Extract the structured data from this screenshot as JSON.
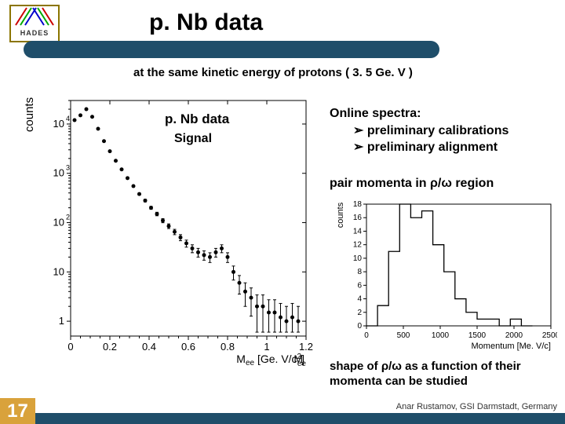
{
  "logo": {
    "text": "HADES"
  },
  "title": "p. Nb data",
  "subtitle": "at the same kinetic energy of protons ( 3. 5 Ge. V )",
  "left_plot": {
    "label1": "p. Nb data",
    "label2": "Signal",
    "ylabel": "counts",
    "xlabel": "M_{ee} [Ge. V/c²]",
    "xlim": [
      0,
      1.2
    ],
    "xticks": [
      0,
      0.2,
      0.4,
      0.6,
      0.8,
      1,
      1.2
    ],
    "ylim": [
      0.5,
      30000
    ],
    "yticks_log": [
      1,
      10,
      100,
      1000,
      10000
    ],
    "ytick_labels": [
      "1",
      "10",
      "10^{2}",
      "10^{3}",
      "10^{4}"
    ],
    "data": [
      {
        "x": 0.02,
        "y": 12000
      },
      {
        "x": 0.05,
        "y": 15000
      },
      {
        "x": 0.08,
        "y": 20000
      },
      {
        "x": 0.11,
        "y": 14000
      },
      {
        "x": 0.14,
        "y": 8000
      },
      {
        "x": 0.17,
        "y": 4500
      },
      {
        "x": 0.2,
        "y": 2800
      },
      {
        "x": 0.23,
        "y": 1800
      },
      {
        "x": 0.26,
        "y": 1200
      },
      {
        "x": 0.29,
        "y": 800
      },
      {
        "x": 0.32,
        "y": 550
      },
      {
        "x": 0.35,
        "y": 380
      },
      {
        "x": 0.38,
        "y": 280
      },
      {
        "x": 0.41,
        "y": 200
      },
      {
        "x": 0.44,
        "y": 150
      },
      {
        "x": 0.47,
        "y": 110
      },
      {
        "x": 0.5,
        "y": 85
      },
      {
        "x": 0.53,
        "y": 65
      },
      {
        "x": 0.56,
        "y": 50
      },
      {
        "x": 0.59,
        "y": 38
      },
      {
        "x": 0.62,
        "y": 30
      },
      {
        "x": 0.65,
        "y": 25
      },
      {
        "x": 0.68,
        "y": 22
      },
      {
        "x": 0.71,
        "y": 20
      },
      {
        "x": 0.74,
        "y": 25
      },
      {
        "x": 0.77,
        "y": 30
      },
      {
        "x": 0.8,
        "y": 20
      },
      {
        "x": 0.83,
        "y": 10
      },
      {
        "x": 0.86,
        "y": 6
      },
      {
        "x": 0.89,
        "y": 4
      },
      {
        "x": 0.92,
        "y": 3
      },
      {
        "x": 0.95,
        "y": 2
      },
      {
        "x": 0.98,
        "y": 2
      },
      {
        "x": 1.01,
        "y": 1.5
      },
      {
        "x": 1.04,
        "y": 1.5
      },
      {
        "x": 1.07,
        "y": 1.2
      },
      {
        "x": 1.1,
        "y": 1
      },
      {
        "x": 1.13,
        "y": 1.2
      },
      {
        "x": 1.16,
        "y": 1
      }
    ],
    "marker_color": "#000000",
    "frame_color": "#000000"
  },
  "right_text": {
    "heading": "Online spectra:",
    "bullets": [
      "preliminary calibrations",
      "preliminary alignment"
    ],
    "sub1": "pair momenta in ρ/ω region",
    "sub2": "shape of ρ/ω as a function of their momenta can be studied"
  },
  "right_plot": {
    "ylabel": "counts",
    "xlabel": "Momentum [Me. V/c]",
    "xlim": [
      0,
      2500
    ],
    "xticks": [
      0,
      500,
      1000,
      1500,
      2000,
      2500
    ],
    "ylim": [
      0,
      18
    ],
    "yticks": [
      0,
      2,
      4,
      6,
      8,
      10,
      12,
      14,
      16,
      18
    ],
    "hist_bins": [
      {
        "lo": 0,
        "hi": 150,
        "n": 0
      },
      {
        "lo": 150,
        "hi": 300,
        "n": 3
      },
      {
        "lo": 300,
        "hi": 450,
        "n": 11
      },
      {
        "lo": 450,
        "hi": 600,
        "n": 18
      },
      {
        "lo": 600,
        "hi": 750,
        "n": 16
      },
      {
        "lo": 750,
        "hi": 900,
        "n": 17
      },
      {
        "lo": 900,
        "hi": 1050,
        "n": 12
      },
      {
        "lo": 1050,
        "hi": 1200,
        "n": 8
      },
      {
        "lo": 1200,
        "hi": 1350,
        "n": 4
      },
      {
        "lo": 1350,
        "hi": 1500,
        "n": 2
      },
      {
        "lo": 1500,
        "hi": 1650,
        "n": 1
      },
      {
        "lo": 1650,
        "hi": 1800,
        "n": 1
      },
      {
        "lo": 1800,
        "hi": 1950,
        "n": 0
      },
      {
        "lo": 1950,
        "hi": 2100,
        "n": 1
      },
      {
        "lo": 2100,
        "hi": 2250,
        "n": 0
      }
    ],
    "line_color": "#000000",
    "frame_color": "#000000"
  },
  "slide_number": "17",
  "footer": "Anar Rustamov, GSI Darmstadt, Germany",
  "colors": {
    "bar": "#1f4e6a",
    "accent": "#d9a23b",
    "logo_border": "#8b7500"
  }
}
